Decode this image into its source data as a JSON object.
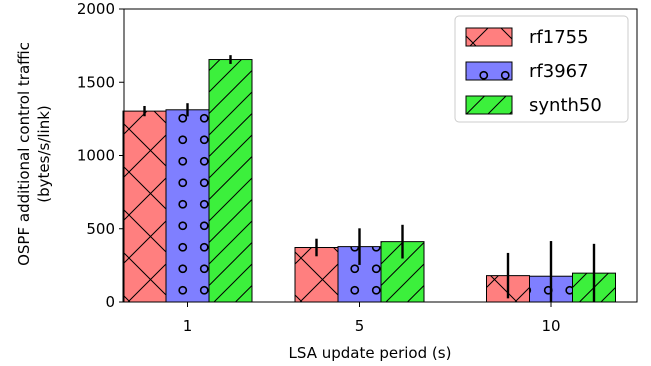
{
  "chart_data": {
    "type": "bar",
    "xlabel": "LSA update period (s)",
    "ylabel": [
      "OSPF additional control traffic",
      "(bytes/s/link)"
    ],
    "categories": [
      "1",
      "5",
      "10"
    ],
    "ylim": [
      0,
      2000
    ],
    "yticks": [
      0,
      500,
      1000,
      1500,
      2000
    ],
    "grid": false,
    "legend_position": "top-right",
    "series": [
      {
        "name": "rf1755",
        "color": "#ff7f7f",
        "pattern": "crosshatch-x",
        "values": [
          1303,
          372,
          180
        ],
        "errors": [
          35,
          60,
          155
        ]
      },
      {
        "name": "rf3967",
        "color": "#7f7fff",
        "pattern": "circles",
        "values": [
          1312,
          378,
          176
        ],
        "errors": [
          45,
          125,
          240
        ]
      },
      {
        "name": "synth50",
        "color": "#3cf03c",
        "pattern": "diagonal",
        "values": [
          1655,
          412,
          197
        ],
        "errors": [
          30,
          115,
          200
        ]
      }
    ]
  }
}
